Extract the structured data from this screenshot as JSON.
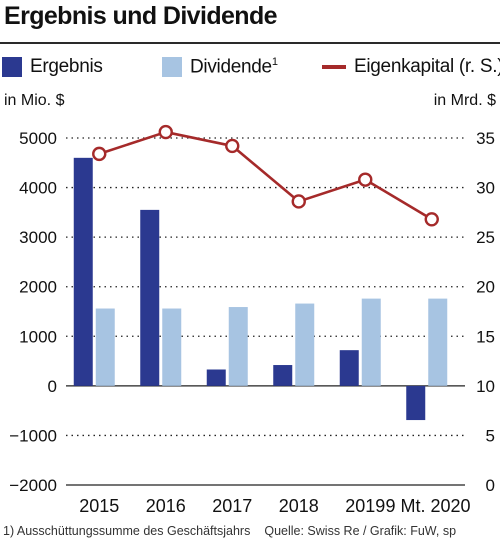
{
  "chart_data": {
    "type": "bar",
    "title": "Ergebnis und Dividende",
    "categories": [
      "2015",
      "2016",
      "2017",
      "2018",
      "2019",
      "9 Mt. 2020"
    ],
    "series": [
      {
        "name": "Ergebnis",
        "type": "bar",
        "axis": "left",
        "color": "#2b3990",
        "values": [
          4600,
          3550,
          330,
          420,
          720,
          -690
        ]
      },
      {
        "name": "Dividende",
        "footnote_marker": "1",
        "type": "bar",
        "axis": "left",
        "color": "#a7c4e2",
        "values": [
          1560,
          1560,
          1590,
          1660,
          1760,
          1760
        ]
      },
      {
        "name": "Eigenkapital (r. S.)",
        "type": "line",
        "axis": "right",
        "color": "#a52a2a",
        "values": [
          33.4,
          35.6,
          34.2,
          28.6,
          30.8,
          26.8
        ]
      }
    ],
    "y_left": {
      "label": "in Mio. $",
      "range": [
        -2000,
        5000
      ],
      "ticks": [
        5000,
        4000,
        3000,
        2000,
        1000,
        0,
        -1000,
        -2000
      ],
      "tick_labels": [
        "5000",
        "4000",
        "3000",
        "2000",
        "1000",
        "0",
        "−1000",
        "−2000"
      ]
    },
    "y_right": {
      "label": "in Mrd. $",
      "range": [
        0,
        35
      ],
      "ticks": [
        35,
        30,
        25,
        20,
        15,
        10,
        5,
        0
      ],
      "tick_labels": [
        "35",
        "30",
        "25",
        "20",
        "15",
        "10",
        "5",
        "0"
      ]
    },
    "grid": "dotted horizontal",
    "legend_position": "top"
  },
  "footer": {
    "note": "1) Ausschüttungssumme des Geschäftsjahrs",
    "source": "Quelle: Swiss Re / Grafik: FuW, sp"
  }
}
